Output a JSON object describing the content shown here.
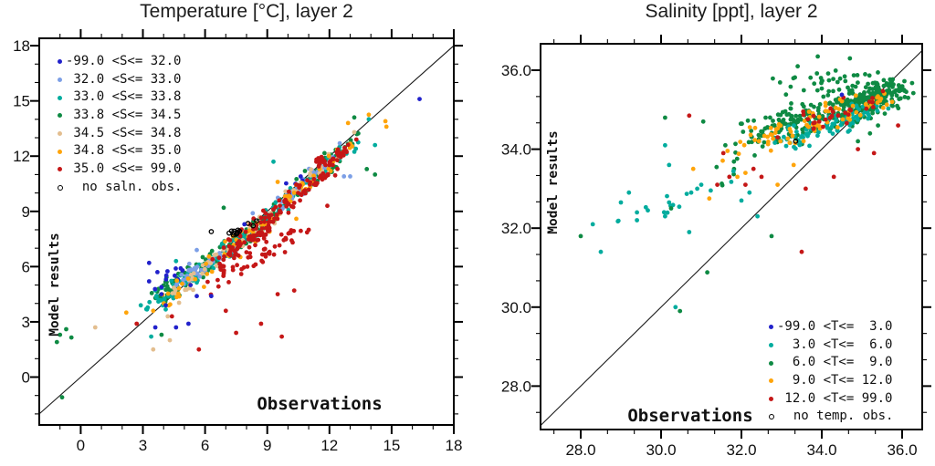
{
  "figure": {
    "background": "#ffffff",
    "frame_color": "#000000",
    "diagonal_line_color": "#1a1a1a"
  },
  "palette": {
    "blue": "#2121cb",
    "cornflower": "#7c9fe6",
    "teal": "#00ac9e",
    "green": "#0e8a43",
    "tan": "#e3be8f",
    "orange": "#ffa40a",
    "red": "#c51717",
    "black": "#000000"
  },
  "chart_data": [
    {
      "type": "scatter",
      "title": "Temperature [°C], layer 2",
      "xlabel": "Observations",
      "ylabel": "Model results",
      "axis": {
        "xmin": -2,
        "xmax": 18,
        "ymin": -2.6,
        "ymax": 18.4,
        "x_major": [
          0,
          3,
          6,
          9,
          12,
          15,
          18
        ],
        "x_major_labels": [
          "0",
          "3",
          "6",
          "9",
          "12",
          "15",
          "18"
        ],
        "y_major": [
          0,
          3,
          6,
          9,
          12,
          15,
          18
        ],
        "y_major_labels": [
          "0",
          "3",
          "6",
          "9",
          "12",
          "15",
          "18"
        ],
        "minor_divisions": 3,
        "grid": false
      },
      "diagonal_line": "y = x (1:1)",
      "legend": {
        "position": "top-left",
        "entries": [
          {
            "label": "-99.0 <S<= 32.0",
            "color": "blue",
            "marker": "dot"
          },
          {
            "label": " 32.0 <S<= 33.0",
            "color": "cornflower",
            "marker": "dot"
          },
          {
            "label": " 33.0 <S<= 33.8",
            "color": "teal",
            "marker": "dot"
          },
          {
            "label": " 33.8 <S<= 34.5",
            "color": "green",
            "marker": "dot"
          },
          {
            "label": " 34.5 <S<= 34.8",
            "color": "tan",
            "marker": "dot"
          },
          {
            "label": " 34.8 <S<= 35.0",
            "color": "orange",
            "marker": "dot"
          },
          {
            "label": " 35.0 <S<= 99.0",
            "color": "red",
            "marker": "dot"
          },
          {
            "label": "  no saln. obs.",
            "color": "black",
            "marker": "open-circle"
          }
        ]
      },
      "point_clusters": [
        [
          "green",
          130,
          3.7,
          4.3,
          8.6,
          8.2,
          0.55,
          0.55
        ],
        [
          "green",
          60,
          8.6,
          8.4,
          12.3,
          11.8,
          0.5,
          0.5
        ],
        [
          "green",
          12,
          11.5,
          12.0,
          13.6,
          13.1,
          0.45,
          0.45
        ],
        [
          "teal",
          95,
          3.4,
          3.9,
          8.2,
          7.8,
          0.55,
          0.5
        ],
        [
          "teal",
          55,
          8.8,
          8.6,
          13.2,
          12.8,
          0.5,
          0.45
        ],
        [
          "cornflower",
          45,
          4.6,
          5.1,
          7.6,
          7.2,
          0.5,
          0.45
        ],
        [
          "cornflower",
          40,
          9.6,
          9.4,
          12.4,
          12.1,
          0.5,
          0.45
        ],
        [
          "blue",
          10,
          3.4,
          4.6,
          4.9,
          6.0,
          0.35,
          0.45
        ],
        [
          "blue",
          8,
          9.9,
          10.1,
          12.6,
          12.2,
          0.35,
          0.35
        ],
        [
          "tan",
          50,
          4.4,
          4.5,
          9.2,
          8.7,
          0.6,
          0.6
        ],
        [
          "tan",
          18,
          9.8,
          9.6,
          12.6,
          12.2,
          0.5,
          0.4
        ],
        [
          "orange",
          45,
          4.1,
          4.0,
          9.2,
          8.7,
          0.7,
          0.6
        ],
        [
          "orange",
          30,
          9.8,
          9.5,
          13.2,
          12.7,
          0.55,
          0.5
        ],
        [
          "red",
          120,
          6.6,
          6.3,
          12.3,
          11.6,
          0.65,
          0.6
        ],
        [
          "red",
          55,
          5.9,
          4.8,
          10.6,
          7.9,
          0.8,
          0.7
        ],
        [
          "red",
          30,
          11.4,
          11.6,
          12.8,
          12.4,
          0.45,
          0.4
        ],
        [
          "red",
          20,
          8.3,
          7.6,
          9.3,
          8.1,
          0.4,
          0.35
        ],
        [
          "black",
          13,
          7.1,
          7.8,
          8.7,
          8.3,
          0.4,
          0.3
        ]
      ],
      "singles": {
        "green": [
          [
            -1.0,
            2.3
          ],
          [
            -0.7,
            2.6
          ],
          [
            -0.45,
            2.15
          ],
          [
            -1.15,
            1.9
          ],
          [
            -0.9,
            -1.1
          ],
          [
            3.9,
            2.3
          ],
          [
            13.2,
            14.1
          ],
          [
            14.2,
            11.0
          ],
          [
            13.8,
            11.3
          ],
          [
            6.9,
            9.2
          ]
        ],
        "teal": [
          [
            3.4,
            2.2
          ],
          [
            2.9,
            3.9
          ],
          [
            14.2,
            12.6
          ],
          [
            13.9,
            14.0
          ],
          [
            4.6,
            6.3
          ],
          [
            9.3,
            11.7
          ]
        ],
        "cornflower": [
          [
            8.3,
            8.9
          ],
          [
            5.6,
            6.9
          ],
          [
            13.0,
            10.9
          ],
          [
            12.7,
            10.9
          ],
          [
            12.5,
            12.7
          ]
        ],
        "blue": [
          [
            16.35,
            15.1
          ],
          [
            3.3,
            6.2
          ],
          [
            3.7,
            5.7
          ],
          [
            3.3,
            5.2
          ],
          [
            3.9,
            4.5
          ],
          [
            5.3,
            5.0
          ],
          [
            5.2,
            2.9
          ],
          [
            4.6,
            2.7
          ],
          [
            3.6,
            2.7
          ],
          [
            4.1,
            3.9
          ],
          [
            5.6,
            4.4
          ],
          [
            6.3,
            4.4
          ],
          [
            7.9,
            8.3
          ]
        ],
        "tan": [
          [
            0.7,
            2.7
          ],
          [
            4.2,
            3.3
          ],
          [
            3.5,
            1.5
          ],
          [
            4.3,
            2.0
          ],
          [
            13.2,
            13.3
          ]
        ],
        "orange": [
          [
            13.9,
            14.25
          ],
          [
            14.75,
            13.6
          ],
          [
            12.9,
            13.8
          ],
          [
            14.7,
            13.9
          ],
          [
            2.2,
            3.5
          ],
          [
            3.5,
            3.6
          ],
          [
            9.5,
            10.6
          ],
          [
            10.4,
            8.6
          ]
        ],
        "red": [
          [
            2.7,
            2.9
          ],
          [
            7.0,
            3.6
          ],
          [
            7.5,
            2.4
          ],
          [
            5.7,
            1.5
          ],
          [
            8.7,
            2.9
          ],
          [
            9.5,
            4.5
          ],
          [
            10.3,
            4.7
          ],
          [
            9.7,
            2.2
          ],
          [
            11.0,
            8.0
          ],
          [
            11.9,
            9.3
          ],
          [
            13.3,
            12.9
          ],
          [
            4.4,
            3.3
          ]
        ],
        "black": [
          [
            6.3,
            7.9
          ]
        ]
      }
    },
    {
      "type": "scatter",
      "title": "Salinity [ppt], layer 2",
      "xlabel": "Observations",
      "ylabel": "Model results",
      "axis": {
        "xmin": 27.0,
        "xmax": 36.5,
        "ymin": 26.9,
        "ymax": 36.67,
        "x_major": [
          28,
          30,
          32,
          34,
          36
        ],
        "x_major_labels": [
          "28.0",
          "30.0",
          "32.0",
          "34.0",
          "36.0"
        ],
        "y_major": [
          28,
          30,
          32,
          34,
          36
        ],
        "y_major_labels": [
          "28.0",
          "30.0",
          "32.0",
          "34.0",
          "36.0"
        ],
        "minor_divisions": 3,
        "grid": false
      },
      "diagonal_line": "y = x (1:1)",
      "legend": {
        "position": "bottom-right",
        "entries": [
          {
            "label": "-99.0 <T<=  3.0",
            "color": "blue",
            "marker": "dot"
          },
          {
            "label": "  3.0 <T<=  6.0",
            "color": "teal",
            "marker": "dot"
          },
          {
            "label": "  6.0 <T<=  9.0",
            "color": "green",
            "marker": "dot"
          },
          {
            "label": "  9.0 <T<= 12.0",
            "color": "orange",
            "marker": "dot"
          },
          {
            "label": " 12.0 <T<= 99.0",
            "color": "red",
            "marker": "dot"
          },
          {
            "label": "  no temp. obs.",
            "color": "black",
            "marker": "open-circle"
          }
        ]
      },
      "point_clusters": [
        [
          "green",
          230,
          32.3,
          34.4,
          35.8,
          35.5,
          0.75,
          0.5
        ],
        [
          "green",
          130,
          34.6,
          34.9,
          35.9,
          35.6,
          0.4,
          0.35
        ],
        [
          "green",
          30,
          33.0,
          35.6,
          35.5,
          35.9,
          0.5,
          0.3
        ],
        [
          "green",
          12,
          31.2,
          33.3,
          32.5,
          34.2,
          0.4,
          0.4
        ],
        [
          "teal",
          85,
          32.9,
          34.15,
          35.3,
          35.0,
          0.5,
          0.35
        ],
        [
          "teal",
          14,
          28.8,
          32.0,
          31.8,
          33.2,
          0.5,
          0.45
        ],
        [
          "orange",
          75,
          32.6,
          34.2,
          35.5,
          35.35,
          0.55,
          0.4
        ],
        [
          "orange",
          10,
          31.6,
          33.8,
          32.6,
          34.6,
          0.35,
          0.35
        ],
        [
          "red",
          28,
          33.4,
          34.4,
          35.6,
          35.35,
          0.5,
          0.4
        ]
      ],
      "singles": {
        "green": [
          [
            30.1,
            34.8
          ],
          [
            31.05,
            34.7
          ],
          [
            31.6,
            34.1
          ],
          [
            28.0,
            31.8
          ],
          [
            30.25,
            32.5
          ],
          [
            30.47,
            29.9
          ],
          [
            31.15,
            30.88
          ],
          [
            32.75,
            31.8
          ],
          [
            33.9,
            36.35
          ],
          [
            34.7,
            36.3
          ],
          [
            33.4,
            36.1
          ],
          [
            36.05,
            35.5
          ],
          [
            36.15,
            35.3
          ],
          [
            35.2,
            34.4
          ],
          [
            34.9,
            34.2
          ],
          [
            35.4,
            34.6
          ]
        ],
        "teal": [
          [
            28.3,
            32.1
          ],
          [
            28.5,
            31.4
          ],
          [
            29.0,
            32.65
          ],
          [
            29.2,
            32.9
          ],
          [
            29.4,
            32.4
          ],
          [
            29.4,
            32.2
          ],
          [
            30.2,
            33.6
          ],
          [
            30.2,
            32.65
          ],
          [
            30.1,
            32.3
          ],
          [
            30.7,
            31.9
          ],
          [
            30.75,
            32.9
          ],
          [
            30.9,
            33.0
          ],
          [
            31.0,
            33.1
          ],
          [
            32.0,
            32.7
          ],
          [
            32.2,
            32.9
          ],
          [
            32.4,
            32.3
          ],
          [
            30.36,
            30.0
          ],
          [
            30.1,
            34.1
          ]
        ],
        "orange": [
          [
            31.2,
            32.75
          ],
          [
            32.9,
            33.1
          ],
          [
            31.9,
            33.3
          ],
          [
            30.8,
            33.5
          ],
          [
            32.1,
            33.4
          ],
          [
            33.3,
            33.6
          ]
        ],
        "red": [
          [
            30.7,
            34.85
          ],
          [
            31.55,
            33.9
          ],
          [
            31.4,
            33.1
          ],
          [
            31.7,
            33.3
          ],
          [
            32.1,
            33.1
          ],
          [
            32.5,
            33.3
          ],
          [
            32.9,
            34.3
          ],
          [
            33.6,
            33.0
          ],
          [
            34.9,
            34.0
          ],
          [
            35.9,
            34.6
          ],
          [
            34.3,
            33.3
          ],
          [
            35.3,
            33.9
          ],
          [
            33.5,
            31.4
          ],
          [
            32.3,
            33.5
          ]
        ],
        "blue": [
          [
            34.5,
            35.38
          ]
        ],
        "black": [
          [
            33.35,
            34.2
          ]
        ]
      }
    }
  ]
}
